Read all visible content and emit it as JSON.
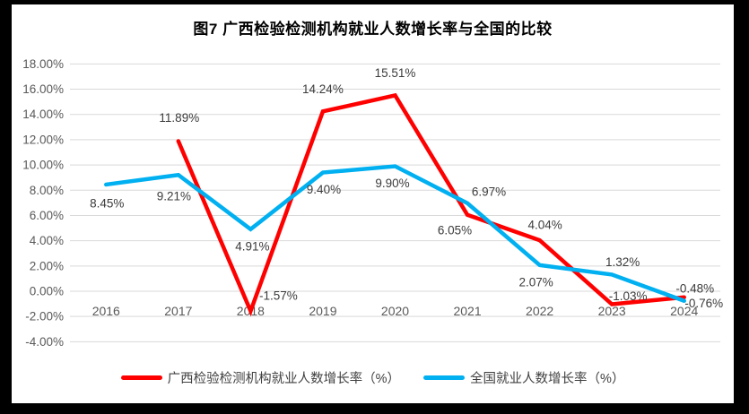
{
  "chart_data": {
    "type": "line",
    "title": "图7 广西检验检测机构就业人数增长率与全国的比较",
    "categories": [
      "2016",
      "2017",
      "2018",
      "2019",
      "2020",
      "2021",
      "2022",
      "2023",
      "2024"
    ],
    "series": [
      {
        "name": "广西检验检测机构就业人数增长率（%）",
        "color": "#FF0000",
        "values": [
          null,
          11.89,
          -1.57,
          14.24,
          15.51,
          6.05,
          4.04,
          -1.03,
          -0.48
        ],
        "value_labels": [
          "",
          "11.89%",
          "-1.57%",
          "14.24%",
          "15.51%",
          "6.05%",
          "4.04%",
          "-1.03%",
          "-0.48%"
        ]
      },
      {
        "name": "全国就业人数增长率（%）",
        "color": "#00B0F0",
        "values": [
          8.45,
          9.21,
          4.91,
          9.4,
          9.9,
          6.97,
          2.07,
          1.32,
          -0.76
        ],
        "value_labels": [
          "8.45%",
          "9.21%",
          "4.91%",
          "9.40%",
          "9.90%",
          "6.97%",
          "2.07%",
          "1.32%",
          "-0.76%"
        ]
      }
    ],
    "y_axis": {
      "min": -4,
      "max": 18,
      "step": 2,
      "tick_labels": [
        "18.00%",
        "16.00%",
        "14.00%",
        "12.00%",
        "10.00%",
        "8.00%",
        "6.00%",
        "4.00%",
        "2.00%",
        "0.00%",
        "-2.00%",
        "-4.00%"
      ]
    },
    "grid": true,
    "legend_position": "bottom",
    "colors": {
      "grid": "#D9D9D9",
      "axis_text": "#595959",
      "data_label_text": "#3b3b3b",
      "title_text": "#000000",
      "plot_background": "#FFFFFF",
      "frame_background": "#000000"
    }
  }
}
